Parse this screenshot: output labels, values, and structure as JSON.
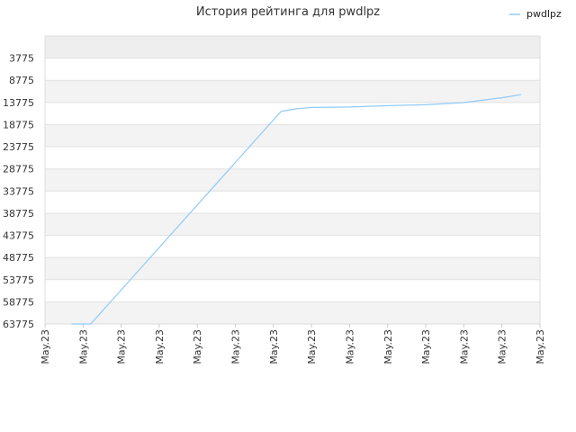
{
  "chart_data": {
    "type": "line",
    "title": "История рейтинга для pwdlpz",
    "xlabel": "",
    "ylabel": "",
    "y_inverted": true,
    "ylim": [
      -1225,
      63775
    ],
    "yticks": [
      3775,
      8775,
      13775,
      18775,
      23775,
      28775,
      33775,
      38775,
      43775,
      48775,
      53775,
      58775,
      63775
    ],
    "x_tick_labels": [
      "May.23",
      "May.23",
      "May.23",
      "May.23",
      "May.23",
      "May.23",
      "May.23",
      "May.23",
      "May.23",
      "May.23",
      "May.23",
      "May.23",
      "May.23",
      "May.23"
    ],
    "grid": true,
    "legend_position": "top-right",
    "series": [
      {
        "name": "pwdlpz",
        "color": "#90caf9",
        "x": [
          0.7,
          1.2,
          6.2,
          6.6,
          7.0,
          8.0,
          9.0,
          10.0,
          11.0,
          12.0,
          12.5
        ],
        "values": [
          63775,
          63775,
          15800,
          15200,
          14900,
          14800,
          14500,
          14300,
          13800,
          12700,
          12000
        ]
      }
    ]
  }
}
